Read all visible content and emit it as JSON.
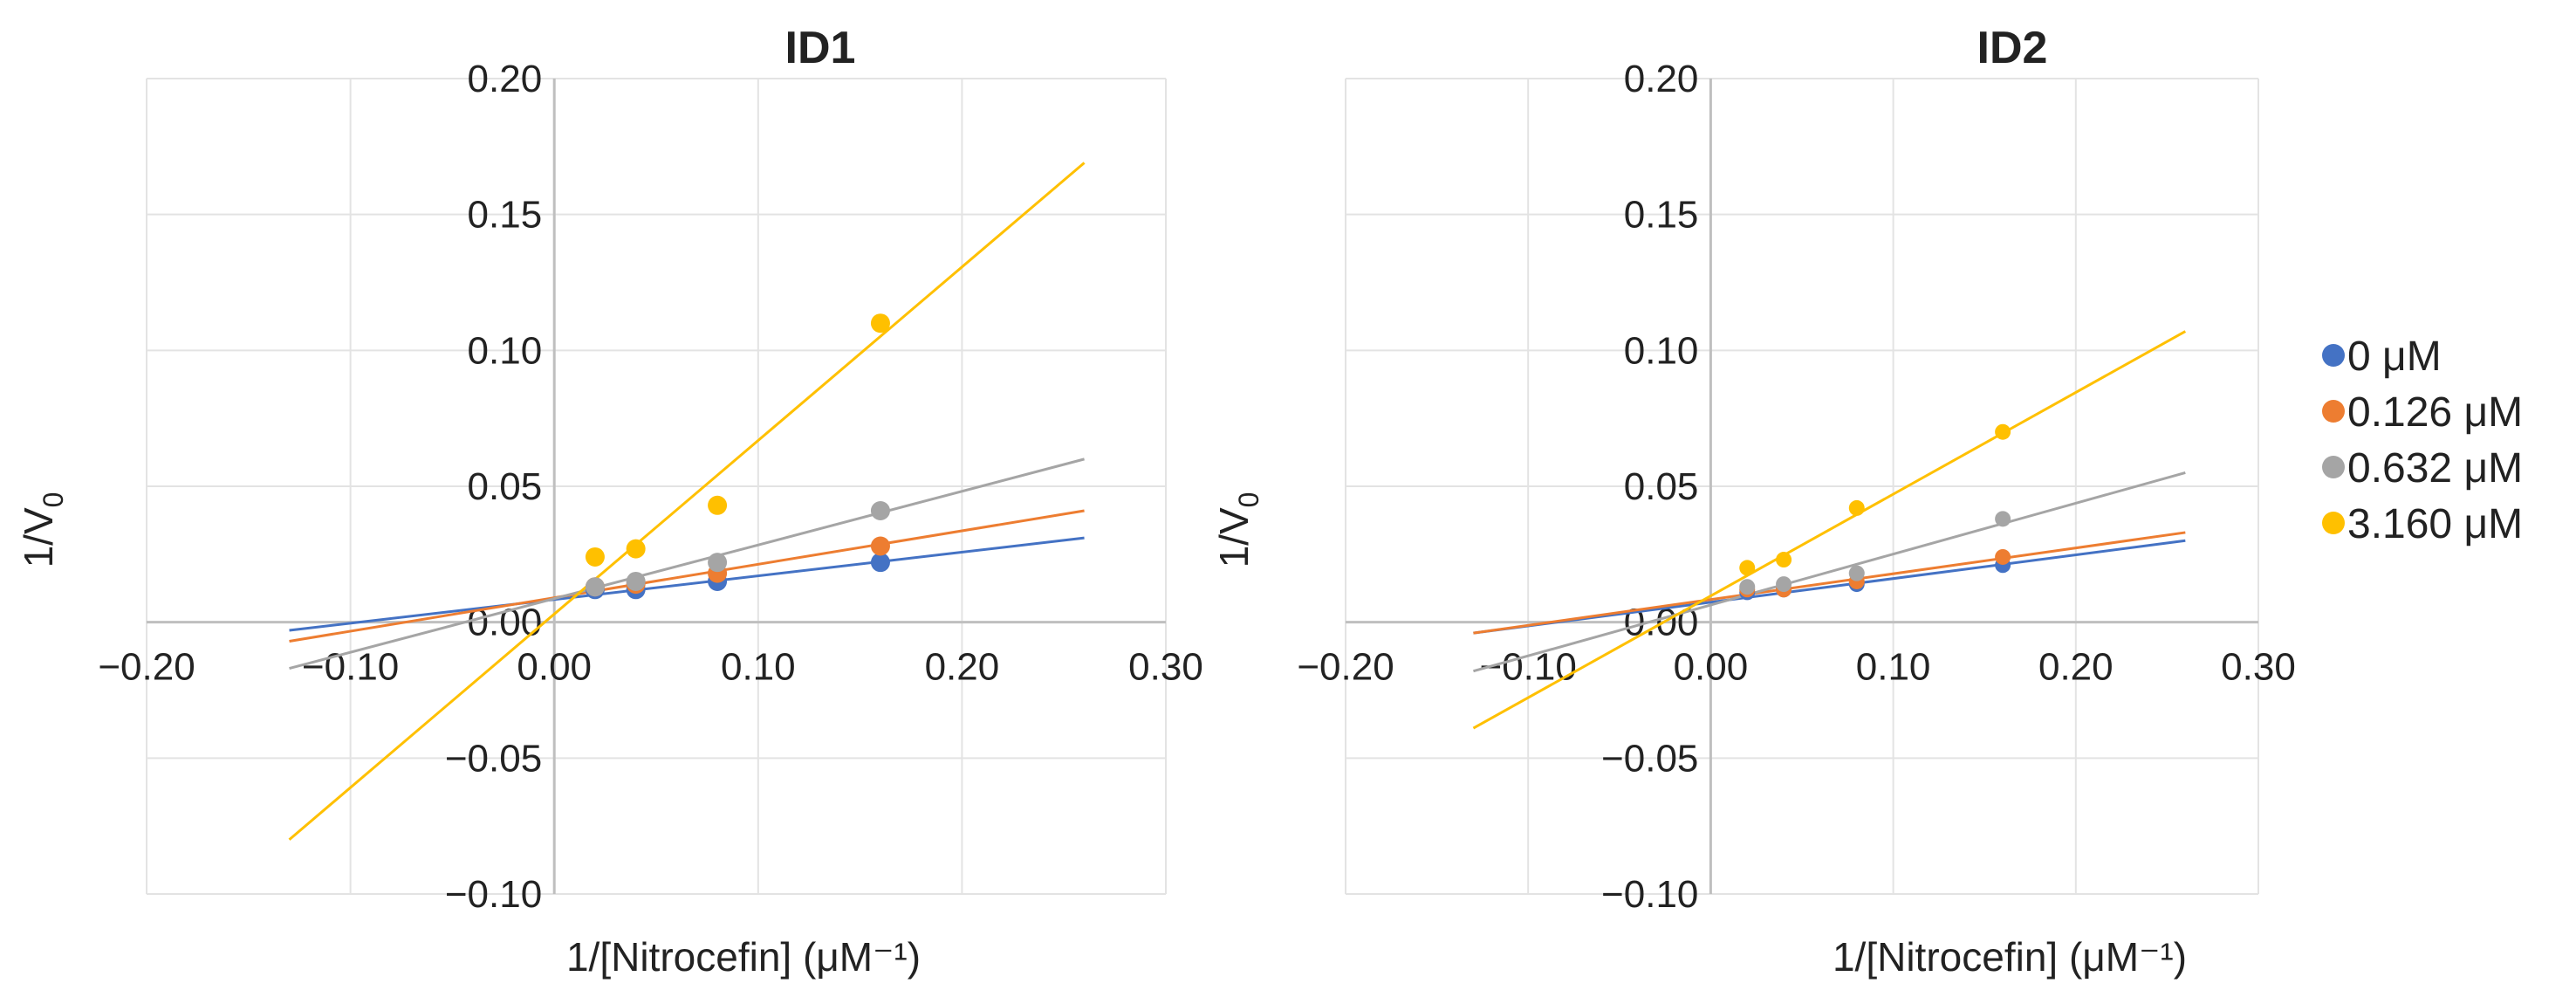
{
  "chart_data": [
    {
      "type": "scatter",
      "title": "ID1",
      "xlabel": "1/[Nitrocefin] (μM⁻¹)",
      "ylabel_main": "1/V",
      "ylabel_sub": "0",
      "xlim": [
        -0.2,
        0.3
      ],
      "ylim": [
        -0.1,
        0.2
      ],
      "xticks": [
        "−0.20",
        "−0.10",
        "0.00",
        "0.10",
        "0.20",
        "0.30"
      ],
      "yticks": [
        "−0.10",
        "−0.05",
        "0.00",
        "0.05",
        "0.10",
        "0.15",
        "0.20"
      ],
      "grid": true,
      "series": [
        {
          "name": "0 μM",
          "color": "#4472c4",
          "x": [
            0.02,
            0.04,
            0.08,
            0.16
          ],
          "y": [
            0.012,
            0.012,
            0.015,
            0.022
          ],
          "trendline": {
            "x": [
              -0.13,
              0.26
            ],
            "y": [
              -0.003,
              0.031
            ]
          }
        },
        {
          "name": "0.126 μM",
          "color": "#ed7d31",
          "x": [
            0.02,
            0.04,
            0.08,
            0.16
          ],
          "y": [
            0.013,
            0.014,
            0.018,
            0.028
          ],
          "trendline": {
            "x": [
              -0.13,
              0.26
            ],
            "y": [
              -0.007,
              0.041
            ]
          }
        },
        {
          "name": "0.632 μM",
          "color": "#a5a5a5",
          "x": [
            0.02,
            0.04,
            0.08,
            0.16
          ],
          "y": [
            0.013,
            0.015,
            0.022,
            0.041
          ],
          "trendline": {
            "x": [
              -0.13,
              0.26
            ],
            "y": [
              -0.017,
              0.06
            ]
          }
        },
        {
          "name": "3.160 μM",
          "color": "#ffc000",
          "x": [
            0.02,
            0.04,
            0.08,
            0.16
          ],
          "y": [
            0.024,
            0.027,
            0.043,
            0.11
          ],
          "trendline": {
            "x": [
              -0.13,
              0.26
            ],
            "y": [
              -0.08,
              0.169
            ]
          }
        }
      ]
    },
    {
      "type": "scatter",
      "title": "ID2",
      "xlabel": "1/[Nitrocefin] (μM⁻¹)",
      "ylabel_main": "1/V",
      "ylabel_sub": "0",
      "xlim": [
        -0.2,
        0.3
      ],
      "ylim": [
        -0.1,
        0.2
      ],
      "xticks": [
        "−0.20",
        "−0.10",
        "0.00",
        "0.10",
        "0.20",
        "0.30"
      ],
      "yticks": [
        "−0.10",
        "−0.05",
        "0.00",
        "0.05",
        "0.10",
        "0.15",
        "0.20"
      ],
      "grid": true,
      "series": [
        {
          "name": "0 μM",
          "color": "#4472c4",
          "x": [
            0.02,
            0.04,
            0.08,
            0.16
          ],
          "y": [
            0.011,
            0.012,
            0.014,
            0.021
          ],
          "trendline": {
            "x": [
              -0.13,
              0.26
            ],
            "y": [
              -0.004,
              0.03
            ]
          }
        },
        {
          "name": "0.126 μM",
          "color": "#ed7d31",
          "x": [
            0.02,
            0.04,
            0.08,
            0.16
          ],
          "y": [
            0.012,
            0.012,
            0.015,
            0.024
          ],
          "trendline": {
            "x": [
              -0.13,
              0.26
            ],
            "y": [
              -0.004,
              0.033
            ]
          }
        },
        {
          "name": "0.632 μM",
          "color": "#a5a5a5",
          "x": [
            0.02,
            0.04,
            0.08,
            0.16
          ],
          "y": [
            0.013,
            0.014,
            0.018,
            0.038
          ],
          "trendline": {
            "x": [
              -0.13,
              0.26
            ],
            "y": [
              -0.018,
              0.055
            ]
          }
        },
        {
          "name": "3.160 μM",
          "color": "#ffc000",
          "x": [
            0.02,
            0.04,
            0.08,
            0.16
          ],
          "y": [
            0.02,
            0.023,
            0.042,
            0.07
          ],
          "trendline": {
            "x": [
              -0.13,
              0.26
            ],
            "y": [
              -0.039,
              0.107
            ]
          }
        }
      ]
    }
  ],
  "legend": {
    "placement": "right",
    "items": [
      {
        "label": "0 μM",
        "color": "#4472c4"
      },
      {
        "label": "0.126 μM",
        "color": "#ed7d31"
      },
      {
        "label": "0.632 μM",
        "color": "#a5a5a5"
      },
      {
        "label": "3.160 μM",
        "color": "#ffc000"
      }
    ]
  }
}
